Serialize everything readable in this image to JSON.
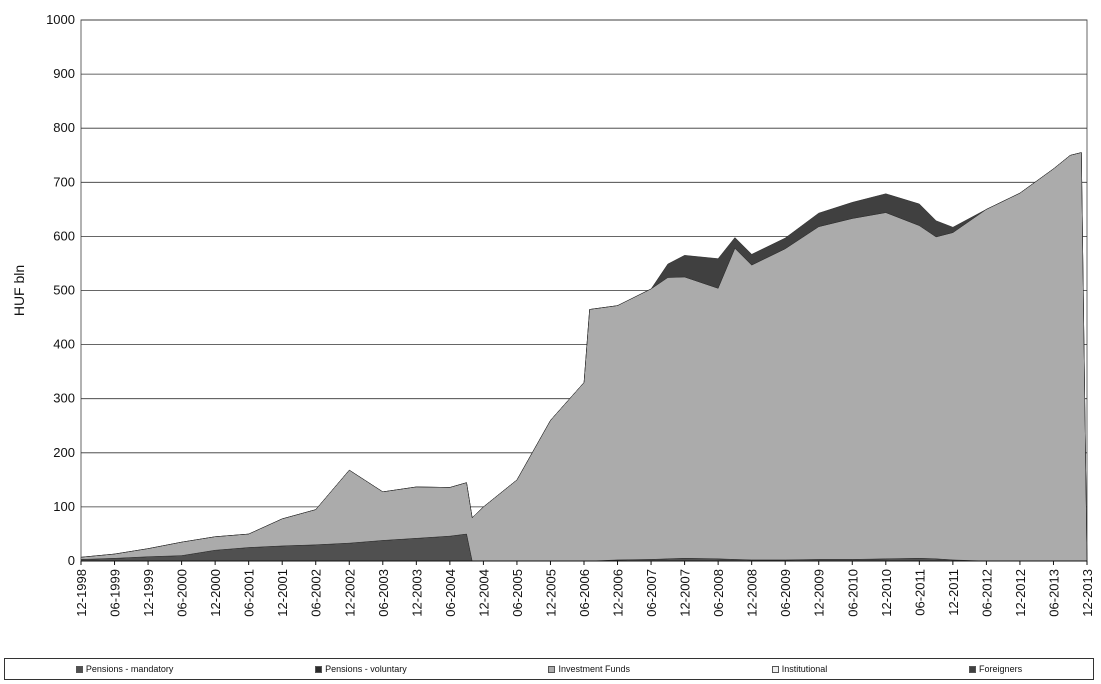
{
  "chart_data": {
    "type": "area",
    "stacked": true,
    "ylabel": "HUF bln",
    "ylim": [
      0,
      1000
    ],
    "yticks": [
      0,
      100,
      200,
      300,
      400,
      500,
      600,
      700,
      800,
      900,
      1000
    ],
    "grid": true,
    "legend_position": "bottom",
    "x_tick_labels": [
      "12-1998",
      "06-1999",
      "12-1999",
      "06-2000",
      "12-2000",
      "06-2001",
      "12-2001",
      "06-2002",
      "12-2002",
      "06-2003",
      "12-2003",
      "06-2004",
      "12-2004",
      "06-2005",
      "12-2005",
      "06-2006",
      "12-2006",
      "06-2007",
      "12-2007",
      "06-2008",
      "12-2008",
      "06-2009",
      "12-2009",
      "06-2010",
      "12-2010",
      "06-2011",
      "12-2011",
      "06-2012",
      "12-2012",
      "06-2013",
      "12-2013"
    ],
    "x": [
      "12-1998",
      "06-1999",
      "12-1999",
      "06-2000",
      "12-2000",
      "06-2001",
      "12-2001",
      "06-2002",
      "12-2002",
      "06-2003",
      "12-2003",
      "06-2004",
      "09-2004",
      "10-2004",
      "12-2004",
      "06-2005",
      "12-2005",
      "06-2006",
      "07-2006",
      "12-2006",
      "06-2007",
      "09-2007",
      "12-2007",
      "06-2008",
      "09-2008",
      "12-2008",
      "06-2009",
      "12-2009",
      "06-2010",
      "12-2010",
      "06-2011",
      "09-2011",
      "12-2011",
      "06-2012",
      "12-2012",
      "06-2013",
      "09-2013",
      "11-2013",
      "12-2013"
    ],
    "series": [
      {
        "name": "Pensions - mandatory",
        "color": "#505050",
        "values": [
          3,
          5,
          8,
          10,
          20,
          25,
          28,
          30,
          33,
          38,
          42,
          46,
          50,
          0,
          0,
          0,
          0,
          0,
          0,
          2,
          3,
          4,
          5,
          4,
          3,
          2,
          2,
          3,
          3,
          4,
          5,
          4,
          2,
          0,
          0,
          0,
          0,
          0,
          0
        ]
      },
      {
        "name": "Pensions - voluntary",
        "color": "#2b2b2b",
        "values": [
          0,
          0,
          0,
          0,
          0,
          0,
          0,
          0,
          0,
          0,
          0,
          0,
          0,
          0,
          0,
          0,
          0,
          0,
          0,
          0,
          0,
          0,
          0,
          0,
          0,
          0,
          0,
          0,
          0,
          0,
          0,
          0,
          0,
          0,
          0,
          0,
          0,
          0,
          0
        ]
      },
      {
        "name": "Investment Funds",
        "color": "#ababab",
        "values": [
          4,
          8,
          15,
          25,
          25,
          25,
          50,
          65,
          135,
          90,
          95,
          90,
          95,
          80,
          100,
          150,
          260,
          330,
          465,
          470,
          500,
          520,
          520,
          500,
          575,
          545,
          575,
          615,
          630,
          640,
          615,
          595,
          605,
          650,
          680,
          725,
          750,
          755,
          0
        ]
      },
      {
        "name": "Institutional",
        "color": "#f0f0f0",
        "values": [
          0,
          0,
          0,
          0,
          0,
          0,
          0,
          0,
          0,
          0,
          0,
          0,
          0,
          0,
          0,
          0,
          0,
          0,
          0,
          0,
          0,
          0,
          0,
          0,
          0,
          0,
          0,
          0,
          0,
          0,
          0,
          0,
          0,
          0,
          0,
          0,
          0,
          0,
          0
        ]
      },
      {
        "name": "Foreigners",
        "color": "#404040",
        "values": [
          0,
          0,
          0,
          0,
          0,
          0,
          0,
          0,
          0,
          0,
          0,
          0,
          0,
          0,
          0,
          0,
          0,
          0,
          0,
          0,
          0,
          25,
          40,
          55,
          20,
          20,
          20,
          25,
          30,
          35,
          40,
          30,
          10,
          0,
          0,
          0,
          0,
          0,
          0
        ]
      }
    ]
  },
  "legend": [
    {
      "label": "Pensions - mandatory",
      "color": "#505050"
    },
    {
      "label": "Pensions - voluntary",
      "color": "#2b2b2b"
    },
    {
      "label": "Investment Funds",
      "color": "#ababab"
    },
    {
      "label": "Institutional",
      "color": "#f0f0f0"
    },
    {
      "label": "Foreigners",
      "color": "#404040"
    }
  ]
}
